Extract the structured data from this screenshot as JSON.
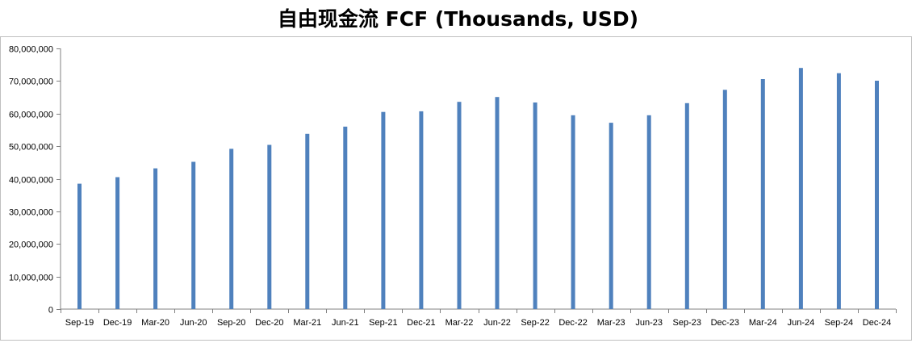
{
  "chart_data": {
    "type": "bar",
    "title": "自由现金流 FCF (Thousands, USD)",
    "xlabel": "",
    "ylabel": "",
    "ylim": [
      0,
      80000000
    ],
    "yticks": [
      0,
      10000000,
      20000000,
      30000000,
      40000000,
      50000000,
      60000000,
      70000000,
      80000000
    ],
    "ytick_labels": [
      "0",
      "10,000,000",
      "20,000,000",
      "30,000,000",
      "40,000,000",
      "50,000,000",
      "60,000,000",
      "70,000,000",
      "80,000,000"
    ],
    "grid": false,
    "legend": "none",
    "bar_color": "#4f81bd",
    "categories": [
      "Sep-19",
      "Dec-19",
      "Mar-20",
      "Jun-20",
      "Sep-20",
      "Dec-20",
      "Mar-21",
      "Jun-21",
      "Sep-21",
      "Dec-21",
      "Mar-22",
      "Jun-22",
      "Sep-22",
      "Dec-22",
      "Mar-23",
      "Jun-23",
      "Sep-23",
      "Dec-23",
      "Mar-24",
      "Jun-24",
      "Sep-24",
      "Dec-24"
    ],
    "values": [
      38500000,
      40500000,
      43200000,
      45200000,
      49200000,
      50400000,
      53800000,
      56000000,
      60500000,
      60700000,
      63600000,
      65100000,
      63400000,
      59500000,
      57200000,
      59500000,
      63200000,
      67300000,
      70600000,
      74000000,
      72400000,
      70100000
    ]
  }
}
